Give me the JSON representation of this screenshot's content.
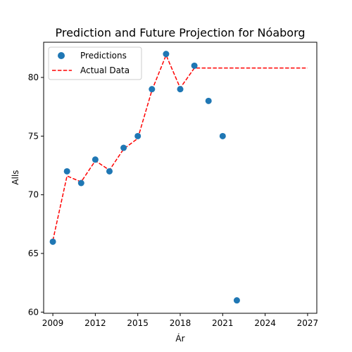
{
  "chart_data": {
    "type": "line",
    "title": "Prediction and Future Projection for Nóaborg",
    "xlabel": "Ár",
    "ylabel": "Alls",
    "xlim": [
      2008.35,
      2027.65
    ],
    "ylim": [
      59.9,
      83.0
    ],
    "xticks": [
      2009,
      2012,
      2015,
      2018,
      2021,
      2024,
      2027
    ],
    "yticks": [
      60,
      65,
      70,
      75,
      80
    ],
    "legend_position": "top-left",
    "grid": false,
    "series": [
      {
        "name": "Predictions",
        "kind": "scatter",
        "color": "#1f77b4",
        "points": [
          {
            "x": 2009,
            "y": 66
          },
          {
            "x": 2010,
            "y": 72
          },
          {
            "x": 2011,
            "y": 71
          },
          {
            "x": 2012,
            "y": 73
          },
          {
            "x": 2013,
            "y": 72
          },
          {
            "x": 2014,
            "y": 74
          },
          {
            "x": 2015,
            "y": 75
          },
          {
            "x": 2016,
            "y": 79
          },
          {
            "x": 2017,
            "y": 82
          },
          {
            "x": 2018,
            "y": 79
          },
          {
            "x": 2019,
            "y": 81
          },
          {
            "x": 2020,
            "y": 78
          },
          {
            "x": 2021,
            "y": 75
          },
          {
            "x": 2022,
            "y": 61
          }
        ]
      },
      {
        "name": "Actual Data",
        "kind": "dashed-line",
        "color": "#ff0000",
        "points": [
          {
            "x": 2009,
            "y": 66.1
          },
          {
            "x": 2010,
            "y": 71.6
          },
          {
            "x": 2011,
            "y": 71.1
          },
          {
            "x": 2012,
            "y": 72.9
          },
          {
            "x": 2013,
            "y": 72.1
          },
          {
            "x": 2014,
            "y": 73.9
          },
          {
            "x": 2015,
            "y": 74.8
          },
          {
            "x": 2016,
            "y": 78.9
          },
          {
            "x": 2017,
            "y": 81.9
          },
          {
            "x": 2018,
            "y": 79.1
          },
          {
            "x": 2019,
            "y": 80.8
          },
          {
            "x": 2027,
            "y": 80.8
          }
        ]
      }
    ]
  }
}
